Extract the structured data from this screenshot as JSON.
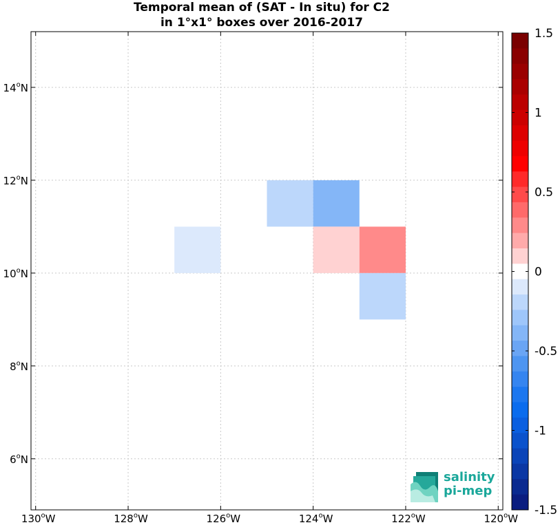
{
  "chart_data": {
    "type": "heatmap",
    "title_lines": [
      "Temporal mean of (SAT - In situ) for C2",
      "in 1°x1° boxes over 2016-2017"
    ],
    "x_ticks": [
      {
        "value": -130,
        "label": "130",
        "hemi": "W"
      },
      {
        "value": -128,
        "label": "128",
        "hemi": "W"
      },
      {
        "value": -126,
        "label": "126",
        "hemi": "W"
      },
      {
        "value": -124,
        "label": "124",
        "hemi": "W"
      },
      {
        "value": -122,
        "label": "122",
        "hemi": "W"
      },
      {
        "value": -120,
        "label": "120",
        "hemi": "W"
      }
    ],
    "y_ticks": [
      {
        "value": 6,
        "label": "6",
        "hemi": "N"
      },
      {
        "value": 8,
        "label": "8",
        "hemi": "N"
      },
      {
        "value": 10,
        "label": "10",
        "hemi": "N"
      },
      {
        "value": 12,
        "label": "12",
        "hemi": "N"
      },
      {
        "value": 14,
        "label": "14",
        "hemi": "N"
      }
    ],
    "xlim": [
      -130.1,
      -119.9
    ],
    "ylim": [
      4.9,
      15.2
    ],
    "grid": true,
    "cells": [
      {
        "lon": -127,
        "lat": 10,
        "value": -0.1
      },
      {
        "lon": -125,
        "lat": 11,
        "value": -0.2
      },
      {
        "lon": -124,
        "lat": 11,
        "value": -0.35
      },
      {
        "lon": -124,
        "lat": 10,
        "value": 0.1
      },
      {
        "lon": -123,
        "lat": 10,
        "value": 0.25
      },
      {
        "lon": -123,
        "lat": 9,
        "value": -0.2
      }
    ],
    "colorbar": {
      "range": [
        -1.5,
        1.5
      ],
      "ticks": [
        {
          "value": 1.5,
          "label": "1.5"
        },
        {
          "value": 1,
          "label": "1"
        },
        {
          "value": 0.5,
          "label": "0.5"
        },
        {
          "value": 0,
          "label": "0"
        },
        {
          "value": -0.5,
          "label": "-0.5"
        },
        {
          "value": -1,
          "label": "-1"
        },
        {
          "value": -1.5,
          "label": "-1.5"
        }
      ],
      "colors_top_to_bottom": [
        "#7a0000",
        "#8a0000",
        "#9a0000",
        "#aa0000",
        "#bb0000",
        "#cc0000",
        "#dd0000",
        "#ee0000",
        "#ff0000",
        "#ff2a2a",
        "#ff4a4a",
        "#ff6a6a",
        "#ff8a8a",
        "#ffaaaa",
        "#ffd2d2",
        "#ffffff",
        "#dce9fc",
        "#bcd7fb",
        "#9ec6fa",
        "#84b6f7",
        "#6aa5f4",
        "#4e95f1",
        "#3585f0",
        "#1c77ef",
        "#0a6cee",
        "#0a5fe0",
        "#0a52cc",
        "#0a44b8",
        "#0a37a4",
        "#0a2a90",
        "#0a1d80"
      ]
    },
    "logo_lines": [
      "salinity",
      "pi-mep"
    ]
  }
}
